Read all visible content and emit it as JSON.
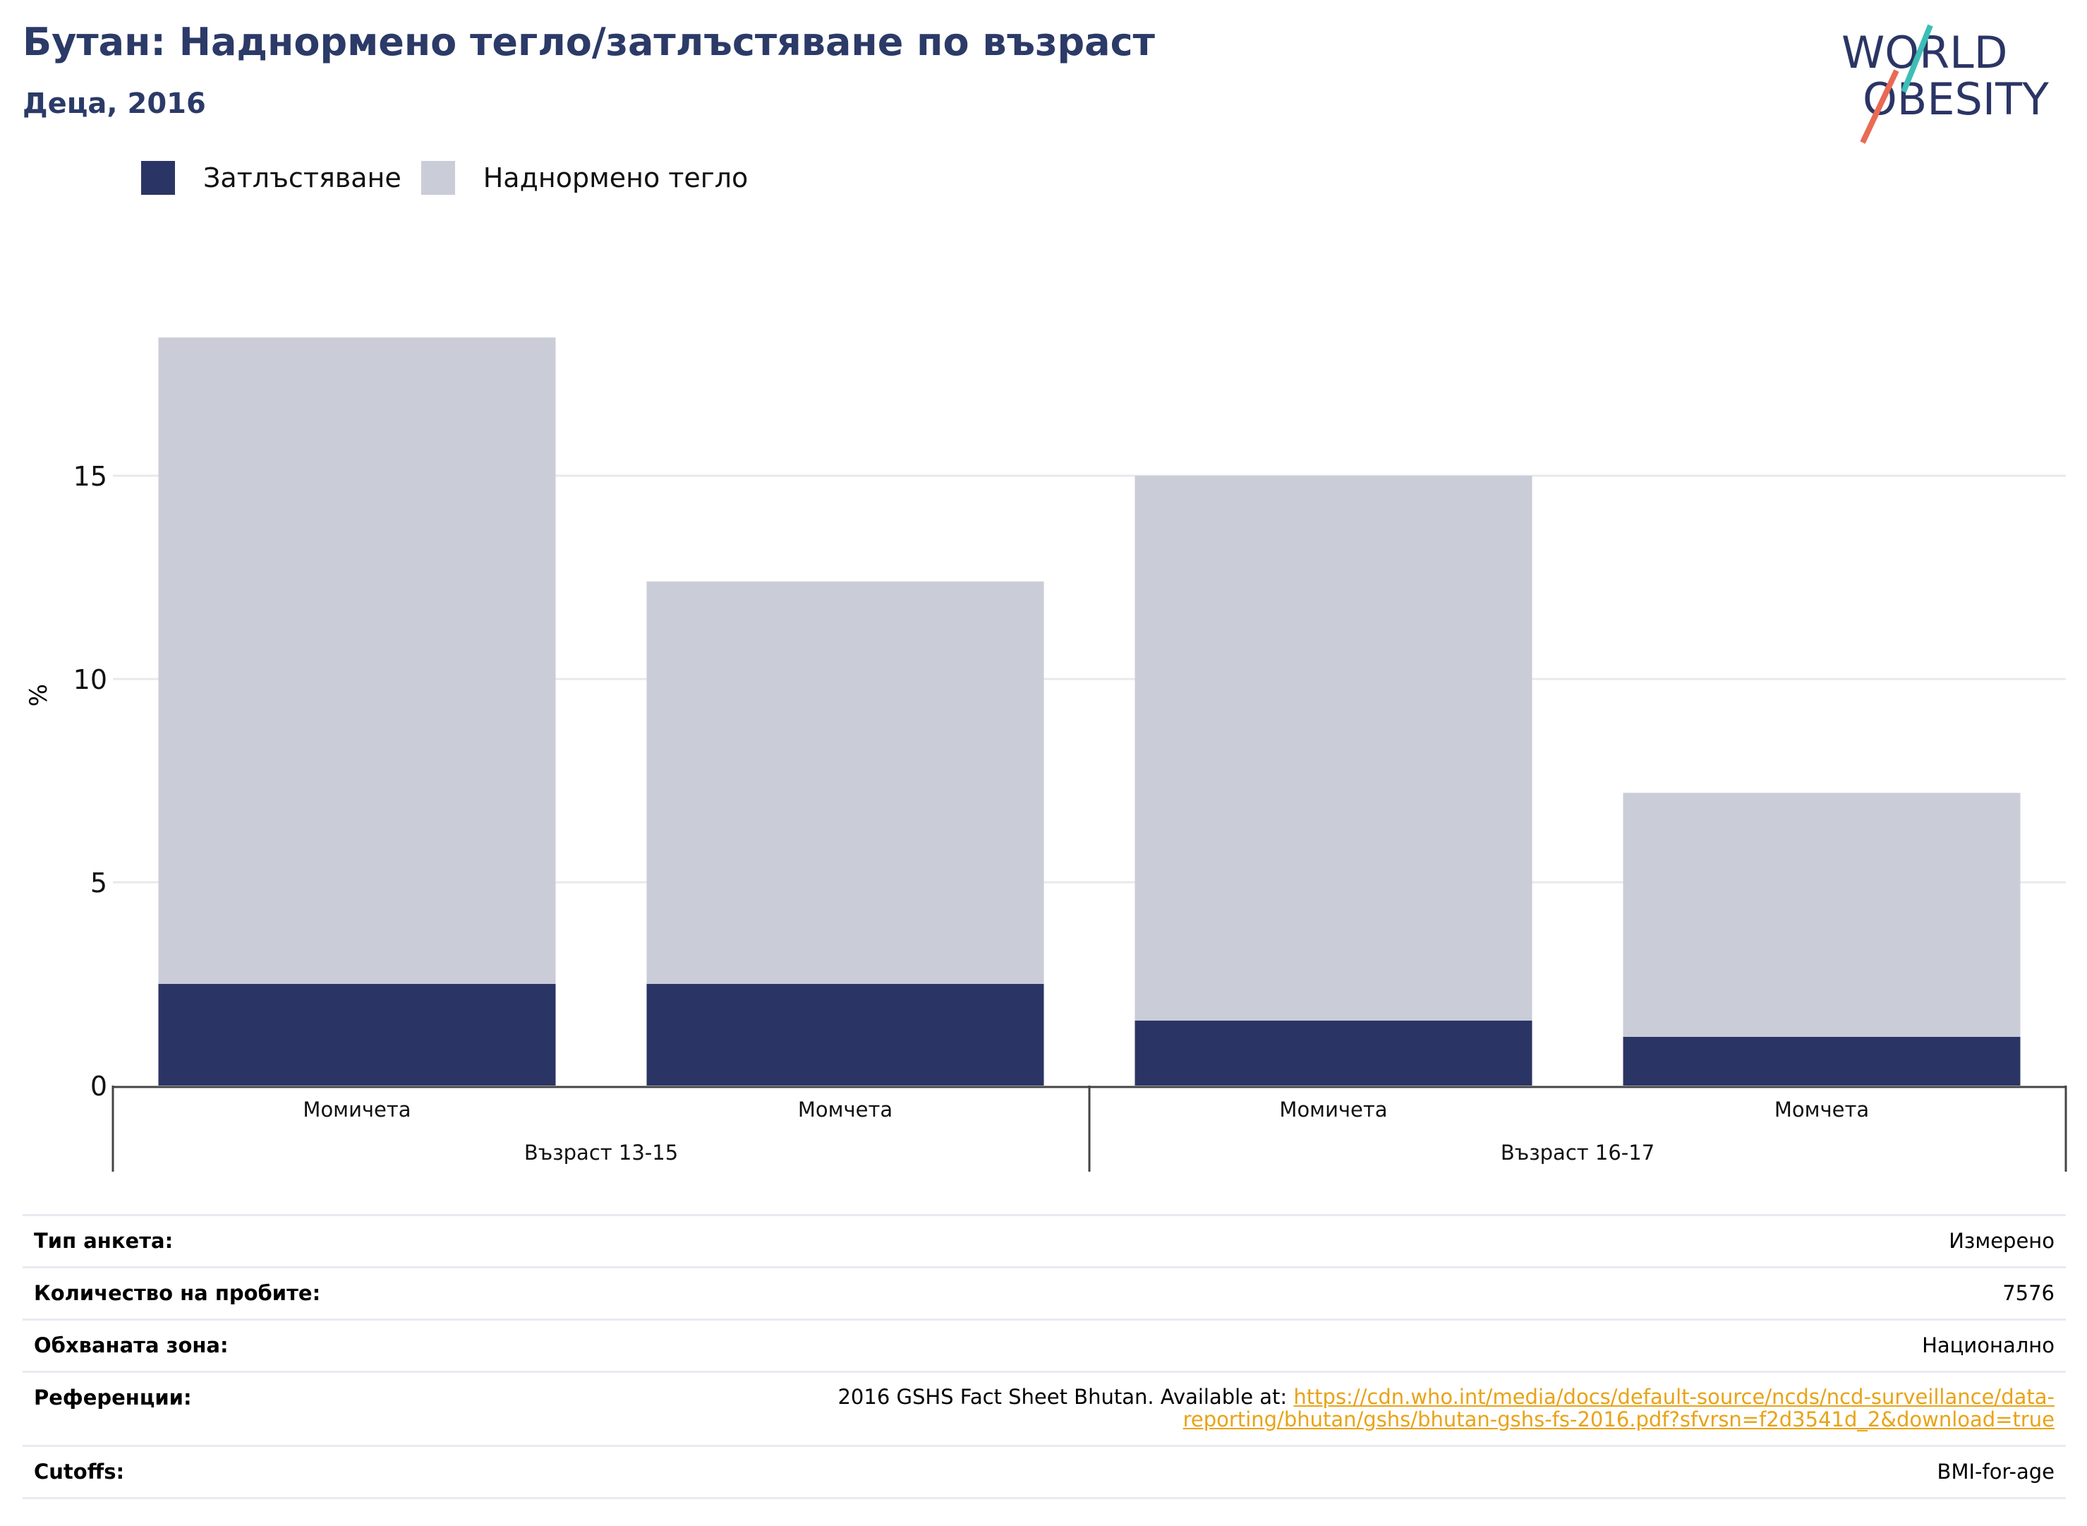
{
  "header": {
    "title": "Бутан: Наднормено тегло/затлъстяване по възраст",
    "subtitle": "Деца, 2016"
  },
  "logo": {
    "line1": "WORLD",
    "line2": "OBESITY"
  },
  "legend": [
    {
      "label": "Затлъстяване",
      "color": "#2b3565"
    },
    {
      "label": "Наднормено тегло",
      "color": "#cacdd8"
    }
  ],
  "chart_data": {
    "type": "bar",
    "stacked": true,
    "ylabel": "%",
    "ylim": [
      0,
      18.3
    ],
    "yticks": [
      0,
      5,
      10,
      15
    ],
    "grid": true,
    "legend_position": "top-left",
    "categories": [
      "Момичета",
      "Момчета",
      "Момичета",
      "Момчета"
    ],
    "groups": [
      {
        "label": "Възраст 13-15",
        "categories": [
          0,
          1
        ]
      },
      {
        "label": "Възраст 16-17",
        "categories": [
          2,
          3
        ]
      }
    ],
    "series": [
      {
        "name": "Затлъстяване",
        "color": "#2b3565",
        "values": [
          2.5,
          2.5,
          1.6,
          1.2
        ]
      },
      {
        "name": "Наднормено тегло",
        "color": "#cacdd8",
        "values": [
          15.9,
          9.9,
          13.4,
          6.0
        ]
      }
    ]
  },
  "info": {
    "survey_type_label": "Тип анкета:",
    "survey_type_value": "Измерено",
    "sample_size_label": "Количество на пробите:",
    "sample_size_value": "7576",
    "area_label": "Обхваната зона:",
    "area_value": "Национално",
    "references_label": "Референции:",
    "references_text": "2016 GSHS Fact Sheet Bhutan. Available at: ",
    "references_link_1": "https://cdn.who.int/media/docs/default-source/ncds/ncd-surveillance/data-",
    "references_link_2": "reporting/bhutan/gshs/bhutan-gshs-fs-2016.pdf?sfvrsn=f2d3541d_2&download=true",
    "cutoffs_label": "Cutoffs:",
    "cutoffs_value": "BMI-for-age"
  }
}
